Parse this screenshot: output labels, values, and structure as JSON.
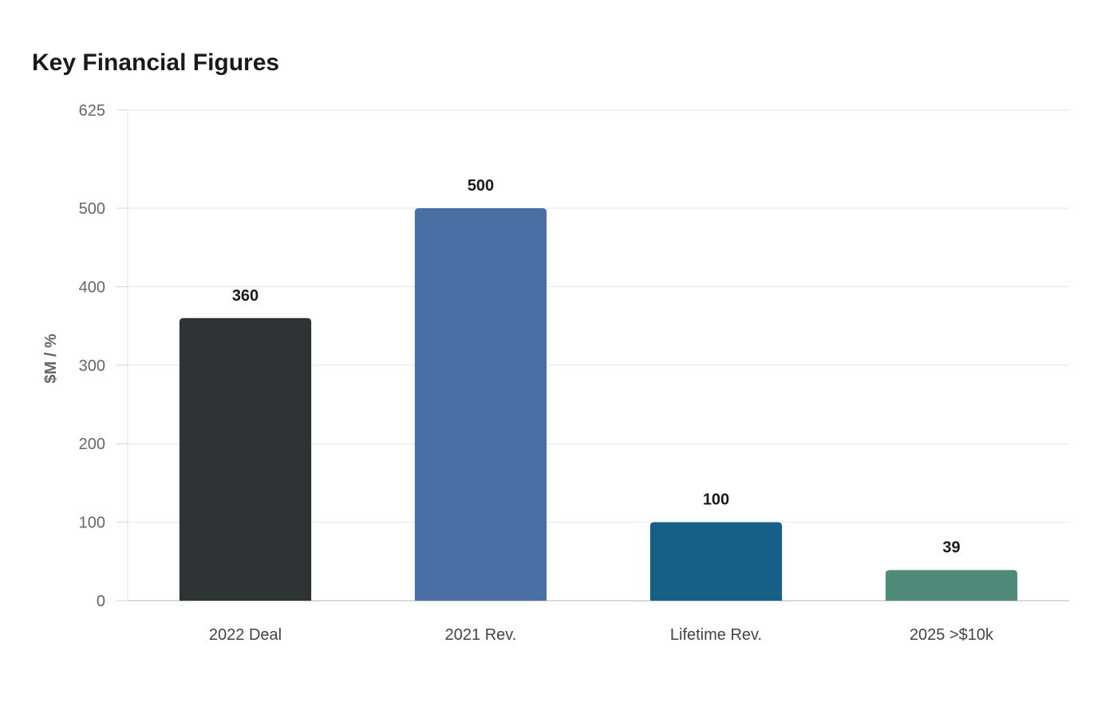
{
  "chart_data": {
    "type": "bar",
    "title": "Key Financial Figures",
    "xlabel": "",
    "ylabel": "$M / %",
    "categories": [
      "2022 Deal",
      "2021 Rev.",
      "Lifetime Rev.",
      "2025 >$10k"
    ],
    "values": [
      360,
      500,
      100,
      39
    ],
    "value_labels": [
      "360",
      "500",
      "100",
      "39"
    ],
    "colors": [
      "#2e3436",
      "#4a6fa5",
      "#166088",
      "#4f8a7a"
    ],
    "ylim": [
      0,
      625
    ],
    "yticks": [
      0,
      100,
      200,
      300,
      400,
      500,
      625
    ],
    "grid": true,
    "legend": "none"
  }
}
